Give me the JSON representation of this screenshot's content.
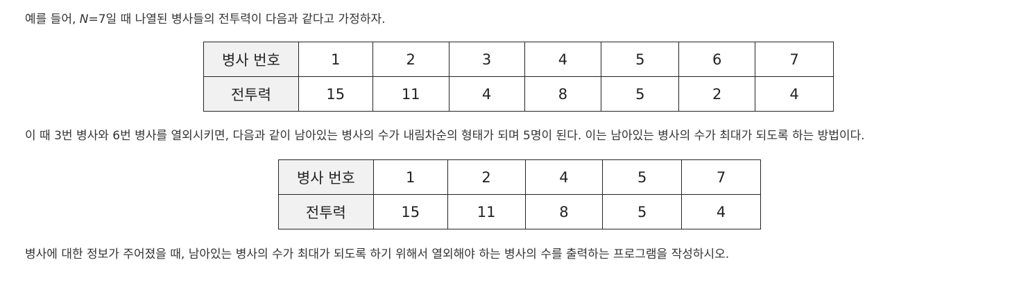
{
  "paragraphs": {
    "p1_pre": "예를 들어, ",
    "p1_var": "N",
    "p1_post": "=7일 때 나열된 병사들의 전투력이 다음과 같다고 가정하자.",
    "p2": "이 때 3번 병사와 6번 병사를 열외시키면, 다음과 같이 남아있는 병사의 수가 내림차순의 형태가 되며 5명이 된다. 이는 남아있는 병사의 수가 최대가 되도록 하는 방법이다.",
    "p3": "병사에 대한 정보가 주어졌을 때, 남아있는 병사의 수가 최대가 되도록 하기 위해서 열외해야 하는 병사의 수를 출력하는 프로그램을 작성하시오."
  },
  "table1": {
    "row_labels": [
      "병사 번호",
      "전투력"
    ],
    "numbers": [
      "1",
      "2",
      "3",
      "4",
      "5",
      "6",
      "7"
    ],
    "powers": [
      "15",
      "11",
      "4",
      "8",
      "5",
      "2",
      "4"
    ]
  },
  "table2": {
    "row_labels": [
      "병사 번호",
      "전투력"
    ],
    "numbers": [
      "1",
      "2",
      "4",
      "5",
      "7"
    ],
    "powers": [
      "15",
      "11",
      "8",
      "5",
      "4"
    ]
  }
}
